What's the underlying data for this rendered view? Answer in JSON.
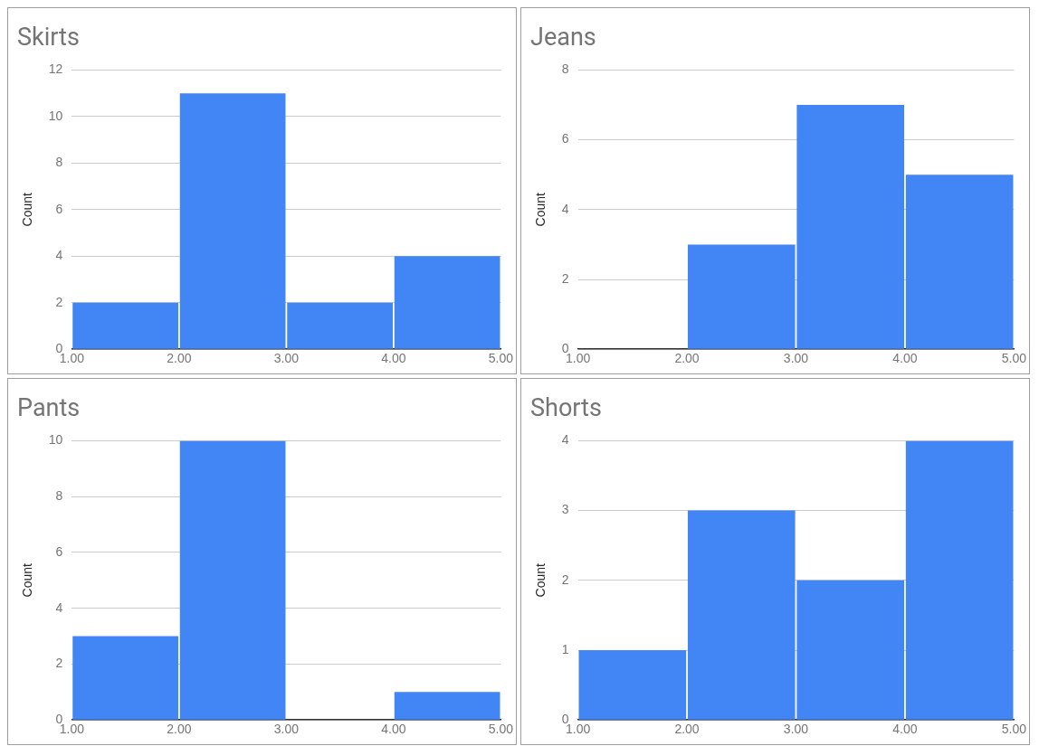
{
  "chart_data": [
    {
      "type": "histogram",
      "title": "Skirts",
      "ylabel": "Count",
      "bins": [
        1,
        2,
        3,
        4,
        5
      ],
      "values": [
        2,
        11,
        2,
        4
      ],
      "color": "#4285f4",
      "xlim": [
        1,
        5
      ],
      "xticks": [
        {
          "value": 1,
          "label": "1.00"
        },
        {
          "value": 2,
          "label": "2.00"
        },
        {
          "value": 3,
          "label": "3.00"
        },
        {
          "value": 4,
          "label": "4.00"
        },
        {
          "value": 5,
          "label": "5.00"
        }
      ],
      "ylim": [
        0,
        12
      ],
      "yticks": [
        0,
        2,
        4,
        6,
        8,
        10,
        12
      ],
      "grid": "y",
      "legend": false
    },
    {
      "type": "histogram",
      "title": "Jeans",
      "ylabel": "Count",
      "bins": [
        1,
        2,
        3,
        4,
        5
      ],
      "values": [
        0,
        3,
        7,
        5
      ],
      "color": "#4285f4",
      "xlim": [
        1,
        5
      ],
      "xticks": [
        {
          "value": 1,
          "label": "1.00"
        },
        {
          "value": 2,
          "label": "2.00"
        },
        {
          "value": 3,
          "label": "3.00"
        },
        {
          "value": 4,
          "label": "4.00"
        },
        {
          "value": 5,
          "label": "5.00"
        }
      ],
      "ylim": [
        0,
        8
      ],
      "yticks": [
        0,
        2,
        4,
        6,
        8
      ],
      "grid": "y",
      "legend": false
    },
    {
      "type": "histogram",
      "title": "Pants",
      "ylabel": "Count",
      "bins": [
        1,
        2,
        3,
        4,
        5
      ],
      "values": [
        3,
        10,
        0,
        1
      ],
      "color": "#4285f4",
      "xlim": [
        1,
        5
      ],
      "xticks": [
        {
          "value": 1,
          "label": "1.00"
        },
        {
          "value": 2,
          "label": "2.00"
        },
        {
          "value": 3,
          "label": "3.00"
        },
        {
          "value": 4,
          "label": "4.00"
        },
        {
          "value": 5,
          "label": "5.00"
        }
      ],
      "ylim": [
        0,
        10
      ],
      "yticks": [
        0,
        2,
        4,
        6,
        8,
        10
      ],
      "grid": "y",
      "legend": false
    },
    {
      "type": "histogram",
      "title": "Shorts",
      "ylabel": "Count",
      "bins": [
        1,
        2,
        3,
        4,
        5
      ],
      "values": [
        1,
        3,
        2,
        4
      ],
      "color": "#4285f4",
      "xlim": [
        1,
        5
      ],
      "xticks": [
        {
          "value": 1,
          "label": "1.00"
        },
        {
          "value": 2,
          "label": "2.00"
        },
        {
          "value": 3,
          "label": "3.00"
        },
        {
          "value": 4,
          "label": "4.00"
        },
        {
          "value": 5,
          "label": "5.00"
        }
      ],
      "ylim": [
        0,
        4
      ],
      "yticks": [
        0,
        1,
        2,
        3,
        4
      ],
      "grid": "y",
      "legend": false
    }
  ]
}
